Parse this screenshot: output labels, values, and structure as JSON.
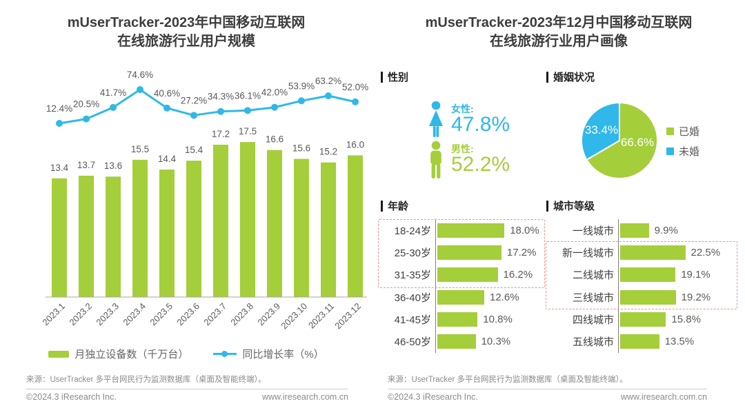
{
  "brand": {
    "green": "#a5ce3b",
    "blue": "#2fb8e9",
    "highlight_dash": "#f0908e",
    "title_text": "#3d3d3d",
    "label_text": "#595959",
    "footer_text": "#8a8a8a"
  },
  "left_panel": {
    "title_line1": "mUserTracker-2023年中国移动互联网",
    "title_line2": "在线旅游行业用户规模"
  },
  "right_panel": {
    "title_line1": "mUserTracker-2023年12月中国移动互联网",
    "title_line2": "在线旅游行业用户画像",
    "section_gender": "性别",
    "section_marital": "婚姻状况",
    "section_age": "年龄",
    "section_city": "城市等级",
    "gender": {
      "female_label": "女性:",
      "female_value": "47.8%",
      "male_label": "男性:",
      "male_value": "52.2%"
    }
  },
  "footer": {
    "source": "来源：UserTracker 多平台网民行为监测数据库（桌面及智能终端）。",
    "copyright": "©2024.3 iResearch Inc.",
    "url": "www.iresearch.com.cn"
  },
  "chart_data": [
    {
      "id": "user-scale-combo",
      "type": "bar",
      "title": "mUserTracker-2023年中国移动互联网在线旅游行业用户规模",
      "categories": [
        "2023.1",
        "2023.2",
        "2023.3",
        "2023.4",
        "2023.5",
        "2023.6",
        "2023.7",
        "2023.8",
        "2023.9",
        "2023.10",
        "2023.11",
        "2023.12"
      ],
      "series": [
        {
          "name": "月独立设备数（千万台）",
          "type": "bar",
          "color": "#a5ce3b",
          "values": [
            13.4,
            13.7,
            13.6,
            15.5,
            14.4,
            15.4,
            17.2,
            17.5,
            16.6,
            15.6,
            15.2,
            16.0
          ]
        },
        {
          "name": "同比增长率（%）",
          "type": "line",
          "color": "#2fb8e9",
          "unit": "%",
          "values": [
            12.4,
            20.5,
            41.7,
            74.6,
            40.6,
            27.2,
            34.3,
            36.1,
            42.0,
            53.9,
            63.2,
            52.0
          ]
        }
      ],
      "legend_position": "bottom",
      "grid": false
    },
    {
      "id": "marital-pie",
      "type": "pie",
      "title": "婚姻状况",
      "labels": [
        "已婚",
        "未婚"
      ],
      "values": [
        66.6,
        33.4
      ],
      "colors": [
        "#a5ce3b",
        "#2fb8e9"
      ],
      "unit": "%",
      "legend_position": "right"
    },
    {
      "id": "age-bars",
      "type": "bar",
      "orientation": "horizontal",
      "title": "年龄",
      "categories": [
        "18-24岁",
        "25-30岁",
        "31-35岁",
        "36-40岁",
        "41-45岁",
        "46-50岁"
      ],
      "values": [
        18.0,
        17.2,
        16.2,
        12.6,
        10.8,
        10.3
      ],
      "unit": "%",
      "color": "#a5ce3b",
      "highlight_rows": [
        0,
        1,
        2
      ]
    },
    {
      "id": "city-bars",
      "type": "bar",
      "orientation": "horizontal",
      "title": "城市等级",
      "categories": [
        "一线城市",
        "新一线城市",
        "二线城市",
        "三线城市",
        "四线城市",
        "五线城市"
      ],
      "values": [
        9.9,
        22.5,
        19.1,
        19.2,
        15.8,
        13.5
      ],
      "unit": "%",
      "color": "#a5ce3b",
      "highlight_rows": [
        1,
        2,
        3
      ]
    }
  ]
}
